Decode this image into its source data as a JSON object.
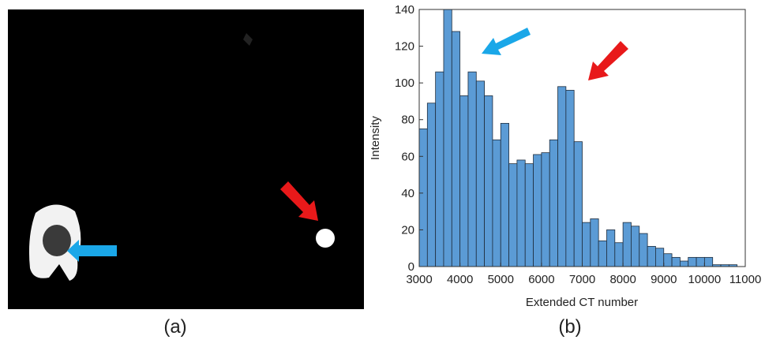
{
  "panels": [
    "(a)",
    "(b)"
  ],
  "chart_data": {
    "type": "histogram",
    "xlabel": "Extended CT number",
    "ylabel": "Intensity",
    "bins": [
      3000,
      3200,
      3400,
      3600,
      3800,
      4000,
      4200,
      4400,
      4600,
      4800,
      5000,
      5200,
      5400,
      5600,
      5800,
      6000,
      6200,
      6400,
      6600,
      6800,
      7000,
      7200,
      7400,
      7600,
      7800,
      8000,
      8200,
      8400,
      8600,
      8800,
      9000,
      9200,
      9400,
      9600,
      9800,
      10000,
      10200,
      10400,
      10600,
      10800
    ],
    "values": [
      75,
      89,
      106,
      140,
      128,
      93,
      106,
      101,
      93,
      69,
      78,
      56,
      58,
      56,
      61,
      62,
      69,
      98,
      96,
      68,
      24,
      26,
      14,
      20,
      13,
      24,
      22,
      18,
      11,
      10,
      7,
      5,
      3,
      5,
      5,
      5,
      1,
      1,
      1
    ],
    "color": "#5b9bd5",
    "xlim": [
      3000,
      11000
    ],
    "xticks": [
      3000,
      4000,
      5000,
      6000,
      7000,
      8000,
      9000,
      10000,
      11000
    ],
    "ylim": [
      0,
      140
    ],
    "yticks": [
      0,
      20,
      40,
      60,
      80,
      100,
      120,
      140
    ]
  }
}
